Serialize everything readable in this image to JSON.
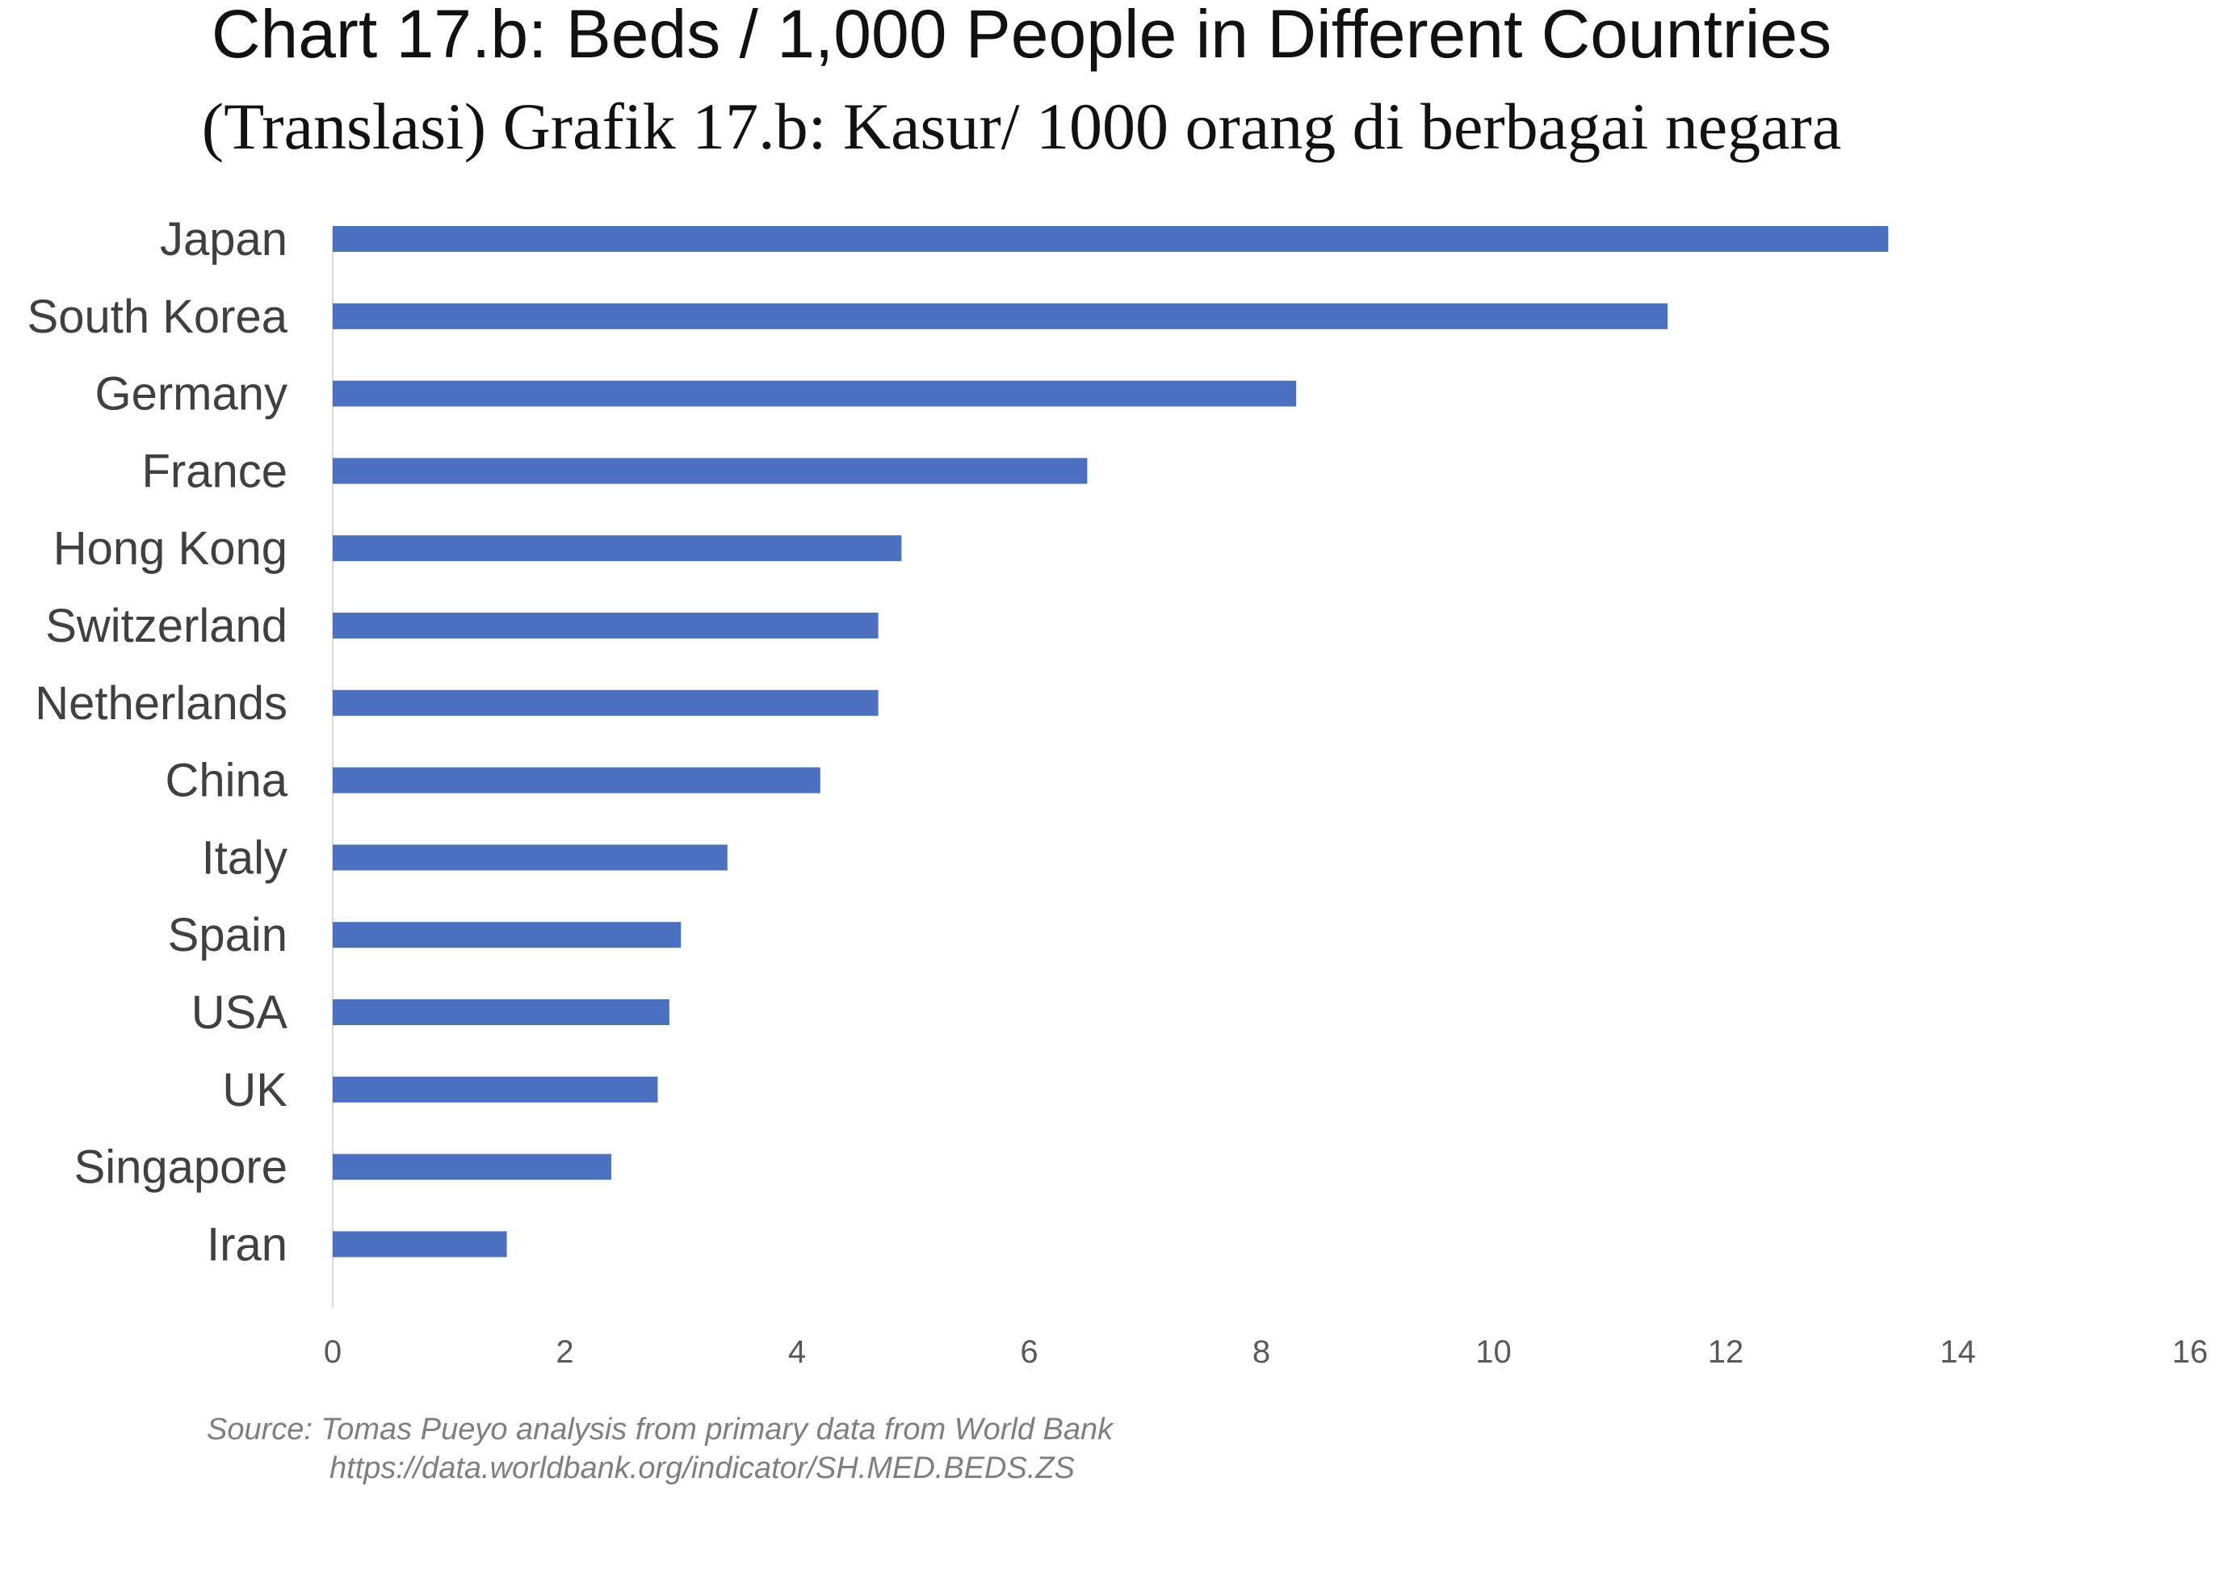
{
  "title": "Chart 17.b: Beds / 1,000 People in Different Countries",
  "subtitle": "(Translasi) Grafik 17.b: Kasur/ 1000 orang di berbagai negara",
  "source": {
    "line1": "Source: Tomas Pueyo analysis from primary data from World Bank",
    "line2": "https://data.worldbank.org/indicator/SH.MED.BEDS.ZS"
  },
  "colors": {
    "bar": "#4A70BF",
    "axis": "#D9D9D9"
  },
  "chart_data": {
    "type": "bar",
    "orientation": "horizontal",
    "title": "Chart 17.b: Beds / 1,000 People in Different Countries",
    "subtitle": "(Translasi) Grafik 17.b: Kasur/ 1000 orang di berbagai negara",
    "xlabel": "",
    "ylabel": "",
    "categories": [
      "Japan",
      "South Korea",
      "Germany",
      "France",
      "Hong Kong",
      "Switzerland",
      "Netherlands",
      "China",
      "Italy",
      "Spain",
      "USA",
      "UK",
      "Singapore",
      "Iran"
    ],
    "values": [
      13.4,
      11.5,
      8.3,
      6.5,
      4.9,
      4.7,
      4.7,
      4.2,
      3.4,
      3.0,
      2.9,
      2.8,
      2.4,
      1.5
    ],
    "xlim": [
      0,
      16
    ],
    "xticks": [
      0,
      2,
      4,
      6,
      8,
      10,
      12,
      14,
      16
    ],
    "grid": false,
    "legend": "none"
  }
}
